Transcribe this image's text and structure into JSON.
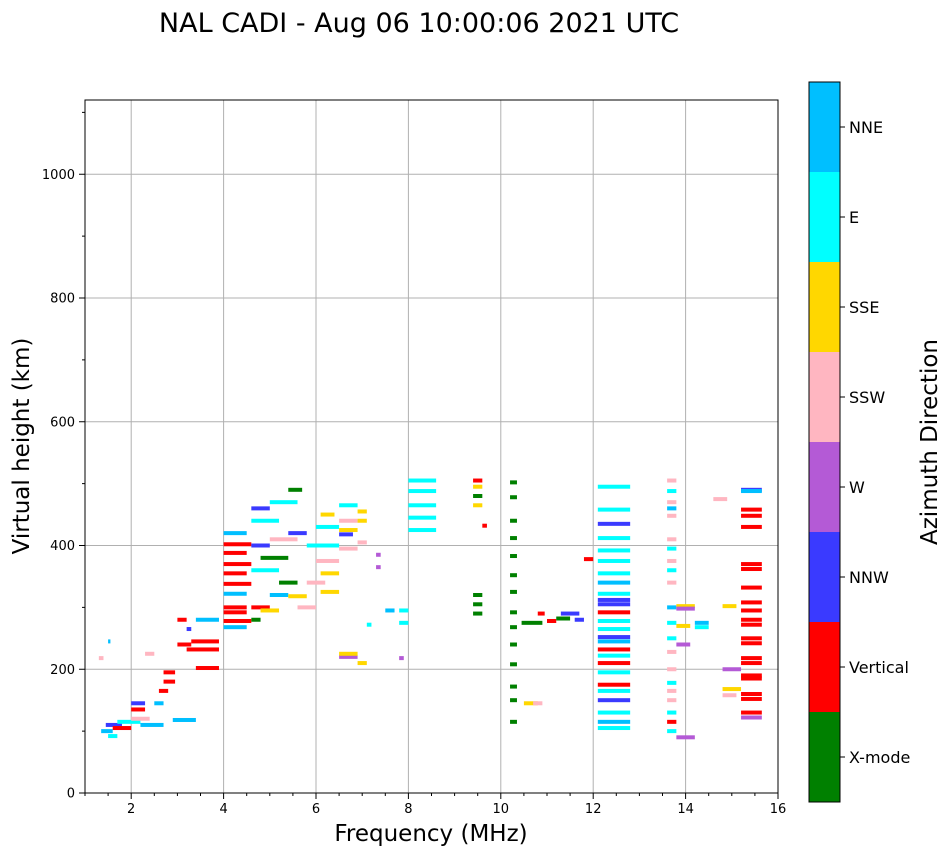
{
  "chart_data": {
    "type": "scatter",
    "title": "NAL CADI - Aug 06 10:00:06 2021 UTC",
    "xlabel": "Frequency (MHz)",
    "ylabel": "Virtual height (km)",
    "xlim": [
      1,
      16
    ],
    "ylim": [
      0,
      1120
    ],
    "xticks": [
      2,
      4,
      6,
      8,
      10,
      12,
      14,
      16
    ],
    "yticks": [
      0,
      200,
      400,
      600,
      800,
      1000
    ],
    "grid": true,
    "colorbar": {
      "label": "Azimuth Direction",
      "categories": [
        "X-mode",
        "Vertical",
        "NNW",
        "W",
        "SSW",
        "SSE",
        "E",
        "NNE"
      ],
      "colors": [
        "#008000",
        "#ff0000",
        "#3a3aff",
        "#b45ad6",
        "#ffb6c1",
        "#ffd700",
        "#00ffff",
        "#00bfff"
      ]
    },
    "echoes": [
      {
        "f0": 1.35,
        "f1": 1.6,
        "h": 100,
        "d": "NNE"
      },
      {
        "f0": 1.45,
        "f1": 1.8,
        "h": 110,
        "d": "NNW"
      },
      {
        "f0": 1.6,
        "f1": 2.0,
        "h": 105,
        "d": "Vertical"
      },
      {
        "f0": 1.7,
        "f1": 2.2,
        "h": 115,
        "d": "E"
      },
      {
        "f0": 1.5,
        "f1": 1.7,
        "h": 92,
        "d": "E"
      },
      {
        "f0": 1.3,
        "f1": 1.4,
        "h": 218,
        "d": "SSW"
      },
      {
        "f0": 1.5,
        "f1": 1.55,
        "h": 245,
        "d": "NNE"
      },
      {
        "f0": 2.0,
        "f1": 2.4,
        "h": 120,
        "d": "SSW"
      },
      {
        "f0": 2.2,
        "f1": 2.7,
        "h": 110,
        "d": "NNE"
      },
      {
        "f0": 2.0,
        "f1": 2.3,
        "h": 145,
        "d": "NNW"
      },
      {
        "f0": 2.0,
        "f1": 2.3,
        "h": 135,
        "d": "Vertical"
      },
      {
        "f0": 2.3,
        "f1": 2.5,
        "h": 225,
        "d": "SSW"
      },
      {
        "f0": 2.5,
        "f1": 2.7,
        "h": 145,
        "d": "NNE"
      },
      {
        "f0": 2.6,
        "f1": 2.8,
        "h": 165,
        "d": "Vertical"
      },
      {
        "f0": 2.7,
        "f1": 2.95,
        "h": 180,
        "d": "Vertical"
      },
      {
        "f0": 2.7,
        "f1": 2.95,
        "h": 195,
        "d": "Vertical"
      },
      {
        "f0": 2.9,
        "f1": 3.4,
        "h": 118,
        "d": "NNE"
      },
      {
        "f0": 3.0,
        "f1": 3.3,
        "h": 240,
        "d": "Vertical"
      },
      {
        "f0": 3.3,
        "f1": 3.9,
        "h": 245,
        "d": "Vertical"
      },
      {
        "f0": 3.2,
        "f1": 3.9,
        "h": 232,
        "d": "Vertical"
      },
      {
        "f0": 3.0,
        "f1": 3.2,
        "h": 280,
        "d": "Vertical"
      },
      {
        "f0": 3.4,
        "f1": 3.9,
        "h": 280,
        "d": "NNE"
      },
      {
        "f0": 3.4,
        "f1": 3.9,
        "h": 202,
        "d": "Vertical"
      },
      {
        "f0": 3.2,
        "f1": 3.3,
        "h": 265,
        "d": "NNW"
      },
      {
        "f0": 4.0,
        "f1": 4.5,
        "h": 420,
        "d": "NNE"
      },
      {
        "f0": 4.0,
        "f1": 4.6,
        "h": 402,
        "d": "Vertical"
      },
      {
        "f0": 4.0,
        "f1": 4.5,
        "h": 388,
        "d": "Vertical"
      },
      {
        "f0": 4.0,
        "f1": 4.6,
        "h": 370,
        "d": "Vertical"
      },
      {
        "f0": 4.0,
        "f1": 4.5,
        "h": 355,
        "d": "Vertical"
      },
      {
        "f0": 4.0,
        "f1": 4.6,
        "h": 338,
        "d": "Vertical"
      },
      {
        "f0": 4.0,
        "f1": 4.5,
        "h": 322,
        "d": "NNE"
      },
      {
        "f0": 4.0,
        "f1": 4.5,
        "h": 300,
        "d": "Vertical"
      },
      {
        "f0": 4.0,
        "f1": 4.5,
        "h": 292,
        "d": "Vertical"
      },
      {
        "f0": 4.0,
        "f1": 4.6,
        "h": 278,
        "d": "Vertical"
      },
      {
        "f0": 4.0,
        "f1": 4.5,
        "h": 268,
        "d": "NNE"
      },
      {
        "f0": 4.6,
        "f1": 4.8,
        "h": 280,
        "d": "X-mode"
      },
      {
        "f0": 4.6,
        "f1": 5.0,
        "h": 300,
        "d": "Vertical"
      },
      {
        "f0": 4.8,
        "f1": 5.2,
        "h": 295,
        "d": "SSE"
      },
      {
        "f0": 5.0,
        "f1": 5.4,
        "h": 320,
        "d": "NNE"
      },
      {
        "f0": 5.2,
        "f1": 5.6,
        "h": 340,
        "d": "X-mode"
      },
      {
        "f0": 4.6,
        "f1": 5.2,
        "h": 360,
        "d": "E"
      },
      {
        "f0": 4.8,
        "f1": 5.4,
        "h": 380,
        "d": "X-mode"
      },
      {
        "f0": 4.6,
        "f1": 5.0,
        "h": 400,
        "d": "NNW"
      },
      {
        "f0": 5.0,
        "f1": 5.6,
        "h": 410,
        "d": "SSW"
      },
      {
        "f0": 4.6,
        "f1": 5.2,
        "h": 440,
        "d": "E"
      },
      {
        "f0": 4.6,
        "f1": 5.0,
        "h": 460,
        "d": "NNW"
      },
      {
        "f0": 5.0,
        "f1": 5.6,
        "h": 470,
        "d": "E"
      },
      {
        "f0": 5.4,
        "f1": 5.7,
        "h": 490,
        "d": "X-mode"
      },
      {
        "f0": 5.4,
        "f1": 5.8,
        "h": 420,
        "d": "NNW"
      },
      {
        "f0": 5.4,
        "f1": 5.8,
        "h": 318,
        "d": "SSE"
      },
      {
        "f0": 5.6,
        "f1": 6.0,
        "h": 300,
        "d": "SSW"
      },
      {
        "f0": 5.8,
        "f1": 6.2,
        "h": 340,
        "d": "SSW"
      },
      {
        "f0": 6.1,
        "f1": 6.5,
        "h": 355,
        "d": "SSE"
      },
      {
        "f0": 6.1,
        "f1": 6.5,
        "h": 325,
        "d": "SSE"
      },
      {
        "f0": 6.0,
        "f1": 6.5,
        "h": 375,
        "d": "SSW"
      },
      {
        "f0": 5.8,
        "f1": 6.5,
        "h": 400,
        "d": "E"
      },
      {
        "f0": 6.0,
        "f1": 6.5,
        "h": 430,
        "d": "E"
      },
      {
        "f0": 6.1,
        "f1": 6.4,
        "h": 450,
        "d": "SSE"
      },
      {
        "f0": 6.5,
        "f1": 6.9,
        "h": 425,
        "d": "SSE"
      },
      {
        "f0": 6.5,
        "f1": 6.9,
        "h": 440,
        "d": "SSW"
      },
      {
        "f0": 6.5,
        "f1": 6.9,
        "h": 465,
        "d": "E"
      },
      {
        "f0": 6.5,
        "f1": 6.8,
        "h": 418,
        "d": "NNW"
      },
      {
        "f0": 6.5,
        "f1": 6.9,
        "h": 395,
        "d": "SSW"
      },
      {
        "f0": 6.9,
        "f1": 7.1,
        "h": 455,
        "d": "SSE"
      },
      {
        "f0": 6.9,
        "f1": 7.1,
        "h": 440,
        "d": "SSE"
      },
      {
        "f0": 6.9,
        "f1": 7.1,
        "h": 405,
        "d": "SSW"
      },
      {
        "f0": 6.5,
        "f1": 6.9,
        "h": 220,
        "d": "W"
      },
      {
        "f0": 6.5,
        "f1": 6.9,
        "h": 225,
        "d": "SSE"
      },
      {
        "f0": 6.9,
        "f1": 7.1,
        "h": 210,
        "d": "SSE"
      },
      {
        "f0": 7.3,
        "f1": 7.4,
        "h": 385,
        "d": "W"
      },
      {
        "f0": 7.3,
        "f1": 7.4,
        "h": 365,
        "d": "W"
      },
      {
        "f0": 7.5,
        "f1": 7.7,
        "h": 295,
        "d": "NNE"
      },
      {
        "f0": 7.8,
        "f1": 8.0,
        "h": 295,
        "d": "E"
      },
      {
        "f0": 7.8,
        "f1": 8.0,
        "h": 275,
        "d": "E"
      },
      {
        "f0": 7.8,
        "f1": 7.9,
        "h": 218,
        "d": "W"
      },
      {
        "f0": 7.1,
        "f1": 7.2,
        "h": 272,
        "d": "E"
      },
      {
        "f0": 8.0,
        "f1": 8.6,
        "h": 505,
        "d": "E"
      },
      {
        "f0": 8.0,
        "f1": 8.6,
        "h": 488,
        "d": "E"
      },
      {
        "f0": 8.0,
        "f1": 8.6,
        "h": 465,
        "d": "E"
      },
      {
        "f0": 8.0,
        "f1": 8.6,
        "h": 445,
        "d": "E"
      },
      {
        "f0": 8.0,
        "f1": 8.6,
        "h": 425,
        "d": "E"
      },
      {
        "f0": 9.4,
        "f1": 9.6,
        "h": 505,
        "d": "Vertical"
      },
      {
        "f0": 9.4,
        "f1": 9.6,
        "h": 495,
        "d": "SSE"
      },
      {
        "f0": 9.4,
        "f1": 9.6,
        "h": 480,
        "d": "X-mode"
      },
      {
        "f0": 9.4,
        "f1": 9.6,
        "h": 465,
        "d": "SSE"
      },
      {
        "f0": 9.4,
        "f1": 9.6,
        "h": 320,
        "d": "X-mode"
      },
      {
        "f0": 9.4,
        "f1": 9.6,
        "h": 305,
        "d": "X-mode"
      },
      {
        "f0": 9.4,
        "f1": 9.6,
        "h": 290,
        "d": "X-mode"
      },
      {
        "f0": 9.6,
        "f1": 9.7,
        "h": 432,
        "d": "Vertical"
      },
      {
        "f0": 10.2,
        "f1": 10.35,
        "h": 502,
        "d": "X-mode"
      },
      {
        "f0": 10.2,
        "f1": 10.35,
        "h": 478,
        "d": "X-mode"
      },
      {
        "f0": 10.2,
        "f1": 10.35,
        "h": 440,
        "d": "X-mode"
      },
      {
        "f0": 10.2,
        "f1": 10.35,
        "h": 412,
        "d": "X-mode"
      },
      {
        "f0": 10.2,
        "f1": 10.35,
        "h": 383,
        "d": "X-mode"
      },
      {
        "f0": 10.2,
        "f1": 10.35,
        "h": 352,
        "d": "X-mode"
      },
      {
        "f0": 10.2,
        "f1": 10.35,
        "h": 325,
        "d": "X-mode"
      },
      {
        "f0": 10.2,
        "f1": 10.35,
        "h": 292,
        "d": "X-mode"
      },
      {
        "f0": 10.2,
        "f1": 10.35,
        "h": 268,
        "d": "X-mode"
      },
      {
        "f0": 10.2,
        "f1": 10.35,
        "h": 240,
        "d": "X-mode"
      },
      {
        "f0": 10.2,
        "f1": 10.35,
        "h": 208,
        "d": "X-mode"
      },
      {
        "f0": 10.2,
        "f1": 10.35,
        "h": 172,
        "d": "X-mode"
      },
      {
        "f0": 10.2,
        "f1": 10.35,
        "h": 150,
        "d": "X-mode"
      },
      {
        "f0": 10.2,
        "f1": 10.35,
        "h": 115,
        "d": "X-mode"
      },
      {
        "f0": 10.45,
        "f1": 10.9,
        "h": 275,
        "d": "X-mode"
      },
      {
        "f0": 10.8,
        "f1": 10.95,
        "h": 290,
        "d": "Vertical"
      },
      {
        "f0": 11.0,
        "f1": 11.2,
        "h": 278,
        "d": "Vertical"
      },
      {
        "f0": 11.2,
        "f1": 11.5,
        "h": 282,
        "d": "X-mode"
      },
      {
        "f0": 11.3,
        "f1": 11.7,
        "h": 290,
        "d": "NNW"
      },
      {
        "f0": 11.6,
        "f1": 11.8,
        "h": 280,
        "d": "NNW"
      },
      {
        "f0": 11.8,
        "f1": 12.0,
        "h": 378,
        "d": "Vertical"
      },
      {
        "f0": 10.5,
        "f1": 10.8,
        "h": 145,
        "d": "SSE"
      },
      {
        "f0": 10.7,
        "f1": 10.9,
        "h": 145,
        "d": "SSW"
      },
      {
        "f0": 12.1,
        "f1": 12.8,
        "h": 495,
        "d": "E"
      },
      {
        "f0": 12.1,
        "f1": 12.8,
        "h": 458,
        "d": "E"
      },
      {
        "f0": 12.1,
        "f1": 12.8,
        "h": 435,
        "d": "NNW"
      },
      {
        "f0": 12.1,
        "f1": 12.8,
        "h": 412,
        "d": "E"
      },
      {
        "f0": 12.1,
        "f1": 12.8,
        "h": 392,
        "d": "E"
      },
      {
        "f0": 12.1,
        "f1": 12.8,
        "h": 375,
        "d": "E"
      },
      {
        "f0": 12.1,
        "f1": 12.8,
        "h": 355,
        "d": "E"
      },
      {
        "f0": 12.1,
        "f1": 12.8,
        "h": 340,
        "d": "NNE"
      },
      {
        "f0": 12.1,
        "f1": 12.8,
        "h": 322,
        "d": "E"
      },
      {
        "f0": 12.1,
        "f1": 12.8,
        "h": 312,
        "d": "NNW"
      },
      {
        "f0": 12.1,
        "f1": 12.8,
        "h": 305,
        "d": "NNW"
      },
      {
        "f0": 12.1,
        "f1": 12.8,
        "h": 292,
        "d": "Vertical"
      },
      {
        "f0": 12.1,
        "f1": 12.8,
        "h": 278,
        "d": "E"
      },
      {
        "f0": 12.1,
        "f1": 12.8,
        "h": 265,
        "d": "E"
      },
      {
        "f0": 12.1,
        "f1": 12.8,
        "h": 252,
        "d": "NNW"
      },
      {
        "f0": 12.1,
        "f1": 12.8,
        "h": 245,
        "d": "NNE"
      },
      {
        "f0": 12.1,
        "f1": 12.8,
        "h": 232,
        "d": "Vertical"
      },
      {
        "f0": 12.1,
        "f1": 12.8,
        "h": 222,
        "d": "E"
      },
      {
        "f0": 12.1,
        "f1": 12.8,
        "h": 210,
        "d": "Vertical"
      },
      {
        "f0": 12.1,
        "f1": 12.8,
        "h": 195,
        "d": "E"
      },
      {
        "f0": 12.1,
        "f1": 12.8,
        "h": 175,
        "d": "Vertical"
      },
      {
        "f0": 12.1,
        "f1": 12.8,
        "h": 165,
        "d": "E"
      },
      {
        "f0": 12.1,
        "f1": 12.8,
        "h": 150,
        "d": "NNW"
      },
      {
        "f0": 12.1,
        "f1": 12.8,
        "h": 130,
        "d": "E"
      },
      {
        "f0": 12.1,
        "f1": 12.8,
        "h": 115,
        "d": "NNE"
      },
      {
        "f0": 12.1,
        "f1": 12.8,
        "h": 105,
        "d": "E"
      },
      {
        "f0": 13.6,
        "f1": 13.8,
        "h": 505,
        "d": "SSW"
      },
      {
        "f0": 13.6,
        "f1": 13.8,
        "h": 488,
        "d": "E"
      },
      {
        "f0": 13.6,
        "f1": 13.8,
        "h": 470,
        "d": "SSW"
      },
      {
        "f0": 13.6,
        "f1": 13.8,
        "h": 460,
        "d": "NNE"
      },
      {
        "f0": 13.6,
        "f1": 13.8,
        "h": 448,
        "d": "SSW"
      },
      {
        "f0": 13.6,
        "f1": 13.8,
        "h": 410,
        "d": "SSW"
      },
      {
        "f0": 13.6,
        "f1": 13.8,
        "h": 395,
        "d": "E"
      },
      {
        "f0": 13.6,
        "f1": 13.8,
        "h": 375,
        "d": "SSW"
      },
      {
        "f0": 13.6,
        "f1": 13.8,
        "h": 360,
        "d": "E"
      },
      {
        "f0": 13.6,
        "f1": 13.8,
        "h": 340,
        "d": "SSW"
      },
      {
        "f0": 13.6,
        "f1": 13.8,
        "h": 300,
        "d": "NNE"
      },
      {
        "f0": 13.6,
        "f1": 13.8,
        "h": 275,
        "d": "E"
      },
      {
        "f0": 13.6,
        "f1": 13.8,
        "h": 250,
        "d": "E"
      },
      {
        "f0": 13.6,
        "f1": 13.8,
        "h": 228,
        "d": "SSW"
      },
      {
        "f0": 13.6,
        "f1": 13.8,
        "h": 200,
        "d": "SSW"
      },
      {
        "f0": 13.6,
        "f1": 13.8,
        "h": 178,
        "d": "E"
      },
      {
        "f0": 13.6,
        "f1": 13.8,
        "h": 165,
        "d": "SSW"
      },
      {
        "f0": 13.6,
        "f1": 13.8,
        "h": 150,
        "d": "SSW"
      },
      {
        "f0": 13.6,
        "f1": 13.8,
        "h": 130,
        "d": "E"
      },
      {
        "f0": 13.6,
        "f1": 13.8,
        "h": 115,
        "d": "Vertical"
      },
      {
        "f0": 13.6,
        "f1": 13.8,
        "h": 100,
        "d": "E"
      },
      {
        "f0": 13.8,
        "f1": 14.2,
        "h": 302,
        "d": "SSE"
      },
      {
        "f0": 13.8,
        "f1": 14.2,
        "h": 298,
        "d": "W"
      },
      {
        "f0": 13.8,
        "f1": 14.1,
        "h": 270,
        "d": "SSE"
      },
      {
        "f0": 14.2,
        "f1": 14.5,
        "h": 275,
        "d": "NNE"
      },
      {
        "f0": 14.2,
        "f1": 14.5,
        "h": 268,
        "d": "E"
      },
      {
        "f0": 13.8,
        "f1": 14.1,
        "h": 240,
        "d": "W"
      },
      {
        "f0": 13.8,
        "f1": 14.2,
        "h": 90,
        "d": "W"
      },
      {
        "f0": 14.6,
        "f1": 14.9,
        "h": 475,
        "d": "SSW"
      },
      {
        "f0": 14.8,
        "f1": 15.1,
        "h": 302,
        "d": "SSE"
      },
      {
        "f0": 14.8,
        "f1": 15.2,
        "h": 200,
        "d": "W"
      },
      {
        "f0": 14.8,
        "f1": 15.2,
        "h": 168,
        "d": "SSE"
      },
      {
        "f0": 14.8,
        "f1": 15.1,
        "h": 158,
        "d": "SSW"
      },
      {
        "f0": 15.2,
        "f1": 15.65,
        "h": 490,
        "d": "NNW"
      },
      {
        "f0": 15.2,
        "f1": 15.65,
        "h": 488,
        "d": "NNE"
      },
      {
        "f0": 15.2,
        "f1": 15.65,
        "h": 458,
        "d": "Vertical"
      },
      {
        "f0": 15.2,
        "f1": 15.65,
        "h": 448,
        "d": "Vertical"
      },
      {
        "f0": 15.2,
        "f1": 15.65,
        "h": 430,
        "d": "Vertical"
      },
      {
        "f0": 15.2,
        "f1": 15.65,
        "h": 370,
        "d": "Vertical"
      },
      {
        "f0": 15.2,
        "f1": 15.65,
        "h": 362,
        "d": "Vertical"
      },
      {
        "f0": 15.2,
        "f1": 15.65,
        "h": 332,
        "d": "Vertical"
      },
      {
        "f0": 15.2,
        "f1": 15.65,
        "h": 308,
        "d": "Vertical"
      },
      {
        "f0": 15.2,
        "f1": 15.65,
        "h": 295,
        "d": "Vertical"
      },
      {
        "f0": 15.2,
        "f1": 15.65,
        "h": 280,
        "d": "Vertical"
      },
      {
        "f0": 15.2,
        "f1": 15.65,
        "h": 272,
        "d": "Vertical"
      },
      {
        "f0": 15.2,
        "f1": 15.65,
        "h": 250,
        "d": "Vertical"
      },
      {
        "f0": 15.2,
        "f1": 15.65,
        "h": 242,
        "d": "Vertical"
      },
      {
        "f0": 15.2,
        "f1": 15.65,
        "h": 218,
        "d": "Vertical"
      },
      {
        "f0": 15.2,
        "f1": 15.65,
        "h": 210,
        "d": "Vertical"
      },
      {
        "f0": 15.2,
        "f1": 15.65,
        "h": 190,
        "d": "Vertical"
      },
      {
        "f0": 15.2,
        "f1": 15.65,
        "h": 185,
        "d": "Vertical"
      },
      {
        "f0": 15.2,
        "f1": 15.65,
        "h": 160,
        "d": "Vertical"
      },
      {
        "f0": 15.2,
        "f1": 15.65,
        "h": 152,
        "d": "Vertical"
      },
      {
        "f0": 15.2,
        "f1": 15.65,
        "h": 130,
        "d": "Vertical"
      },
      {
        "f0": 15.2,
        "f1": 15.65,
        "h": 122,
        "d": "W"
      }
    ]
  }
}
